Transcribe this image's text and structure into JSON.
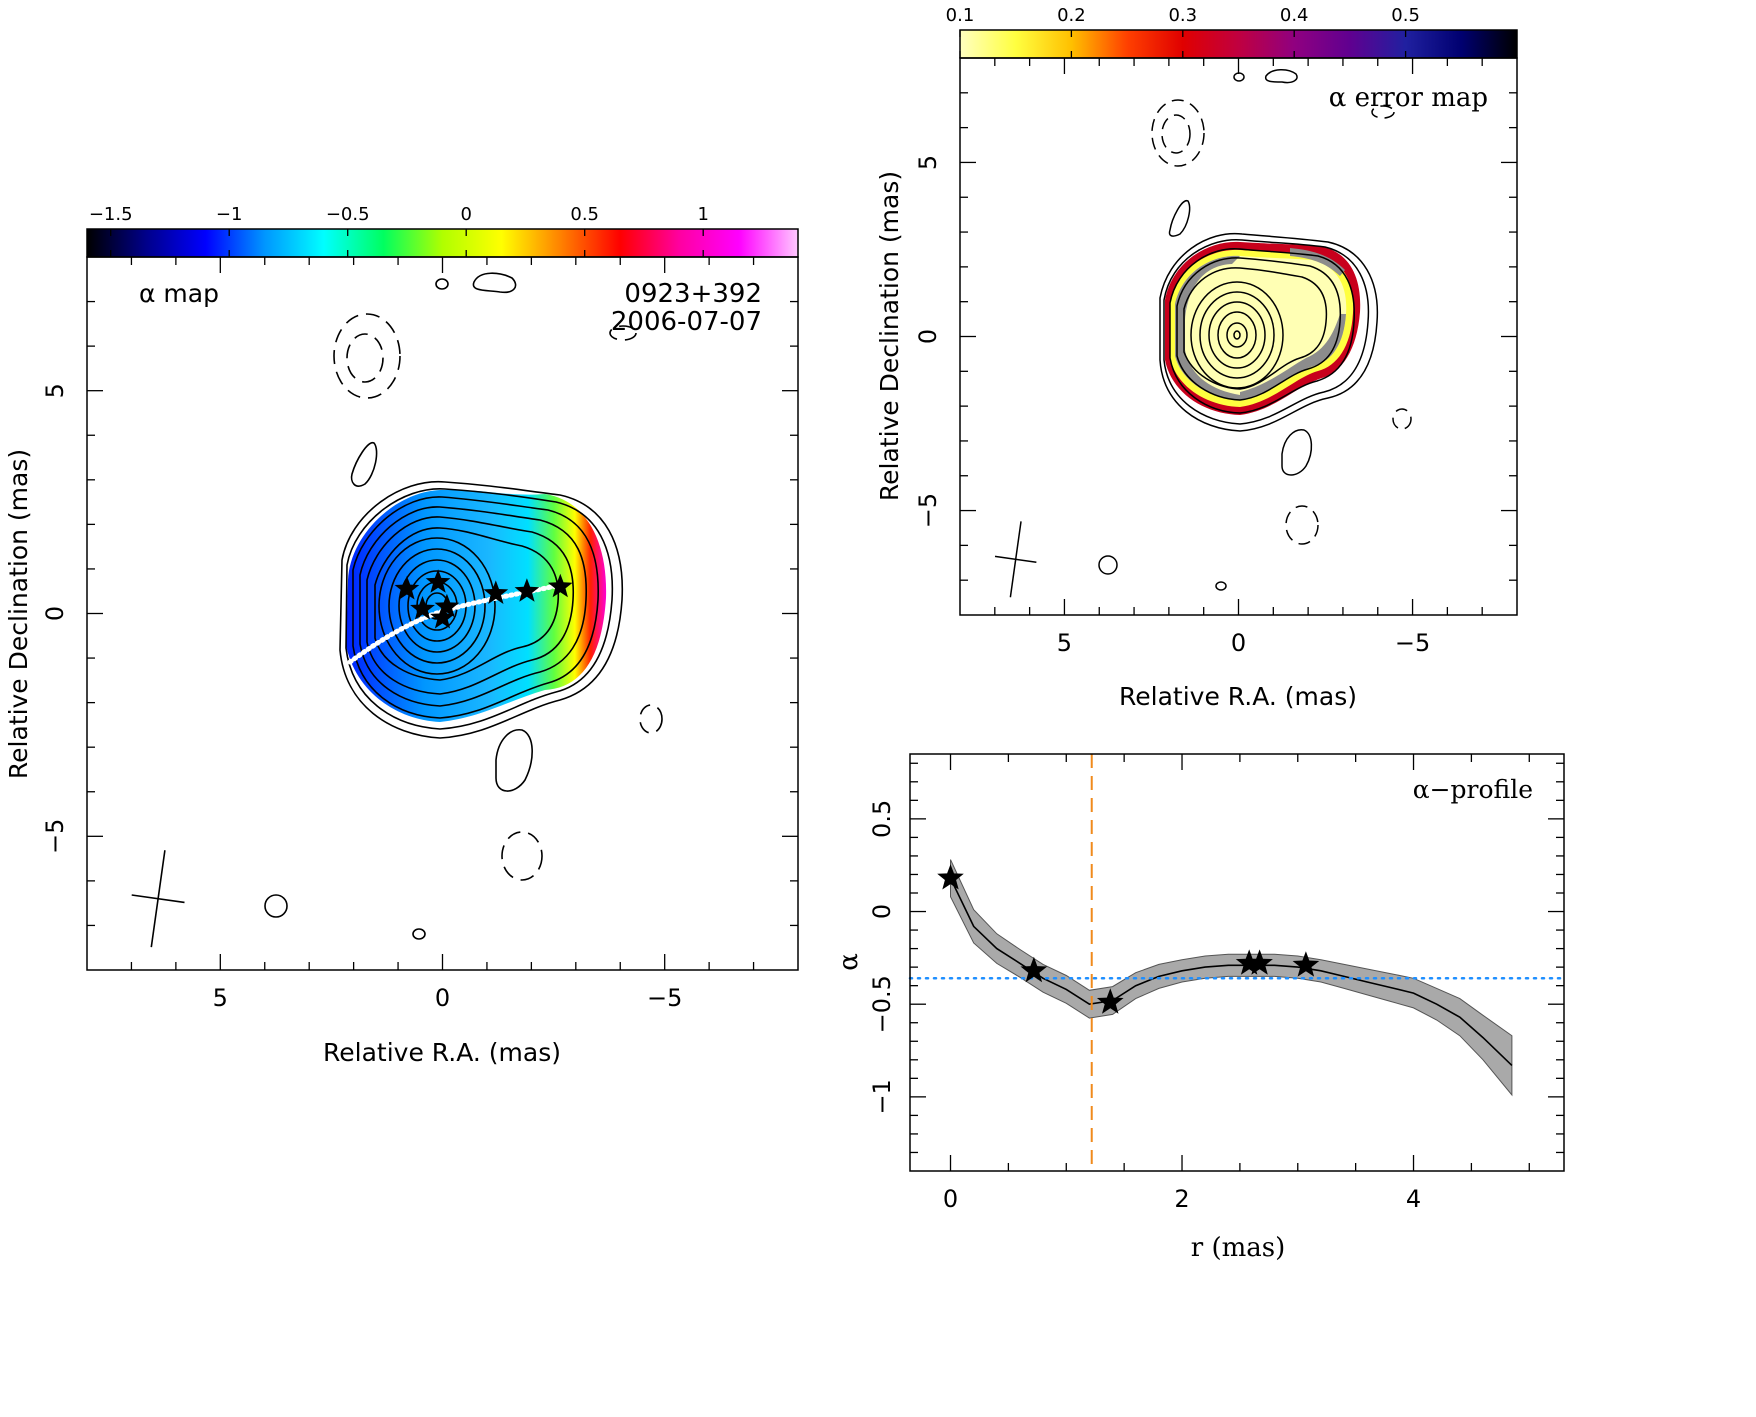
{
  "chart_data": [
    {
      "type": "heatmap",
      "panel": "alpha-map",
      "label": "α map",
      "source": "0923+392",
      "epoch": "2006-07-07",
      "xlabel": "Relative R.A. (mas)",
      "ylabel": "Relative Declination (mas)",
      "xlim": [
        8,
        -8
      ],
      "ylim": [
        -8,
        8
      ],
      "xticks": [
        5,
        0,
        -5
      ],
      "yticks": [
        5,
        0,
        -5
      ],
      "xtick_labels": [
        "5",
        "0",
        "−5"
      ],
      "ytick_labels": [
        "5",
        "0",
        "−5"
      ],
      "colorbar": {
        "range": [
          -1.6,
          1.4
        ],
        "ticks": [
          -1.5,
          -1,
          -0.5,
          0,
          0.5,
          1
        ],
        "tick_labels": [
          "−1.5",
          "−1",
          "−0.5",
          "0",
          "0.5",
          "1"
        ],
        "colors": [
          "#000000",
          "#00008a",
          "#0000ff",
          "#0096ff",
          "#00ffff",
          "#00ff60",
          "#b0ff00",
          "#ffff00",
          "#ff8000",
          "#ff0000",
          "#ff00a0",
          "#ff00ff",
          "#ffc8ff"
        ]
      },
      "ridge_stars": [
        {
          "x": 0.8,
          "y": 0.55
        },
        {
          "x": 0.1,
          "y": 0.7
        },
        {
          "x": 0.45,
          "y": 0.1
        },
        {
          "x": -0.1,
          "y": 0.15
        },
        {
          "x": 0.0,
          "y": -0.1
        },
        {
          "x": -1.2,
          "y": 0.45
        },
        {
          "x": -1.9,
          "y": 0.5
        },
        {
          "x": -2.65,
          "y": 0.6
        }
      ],
      "beam": {
        "x": 6.4,
        "y": -6.4,
        "major": 2.2,
        "minor": 1.2
      }
    },
    {
      "type": "heatmap",
      "panel": "alpha-error-map",
      "label": "α error map",
      "xlabel": "Relative R.A. (mas)",
      "ylabel": "Relative Declination (mas)",
      "xlim": [
        8,
        -8
      ],
      "ylim": [
        -8,
        8
      ],
      "xticks": [
        5,
        0,
        -5
      ],
      "yticks": [
        5,
        0,
        -5
      ],
      "xtick_labels": [
        "5",
        "0",
        "−5"
      ],
      "ytick_labels": [
        "5",
        "0",
        "−5"
      ],
      "colorbar": {
        "range": [
          0.1,
          0.6
        ],
        "ticks": [
          0.1,
          0.2,
          0.3,
          0.4,
          0.5
        ],
        "tick_labels": [
          "0.1",
          "0.2",
          "0.3",
          "0.4",
          "0.5"
        ],
        "colors": [
          "#ffffc0",
          "#ffff40",
          "#ffc000",
          "#ff4000",
          "#e00000",
          "#c00040",
          "#900080",
          "#600090",
          "#2020a0",
          "#000070",
          "#000000"
        ]
      },
      "beam": {
        "x": 6.4,
        "y": -6.4,
        "major": 2.2,
        "minor": 1.2
      }
    },
    {
      "type": "line",
      "panel": "alpha-profile",
      "label": "α−profile",
      "xlabel": "r (mas)",
      "ylabel": "α",
      "xlim": [
        -0.35,
        5.3
      ],
      "ylim": [
        -1.4,
        0.85
      ],
      "xticks": [
        0,
        2,
        4
      ],
      "yticks": [
        0.5,
        0,
        -0.5,
        -1
      ],
      "xtick_labels": [
        "0",
        "2",
        "4"
      ],
      "ytick_labels": [
        "0.5",
        "0",
        "−0.5",
        "−1"
      ],
      "x": [
        0.0,
        0.2,
        0.4,
        0.6,
        0.8,
        1.0,
        1.2,
        1.4,
        1.6,
        1.8,
        2.0,
        2.2,
        2.4,
        2.6,
        2.8,
        3.0,
        3.2,
        3.4,
        3.6,
        3.8,
        4.0,
        4.2,
        4.4,
        4.6,
        4.85
      ],
      "y": [
        0.18,
        -0.08,
        -0.2,
        -0.28,
        -0.36,
        -0.42,
        -0.5,
        -0.48,
        -0.4,
        -0.35,
        -0.32,
        -0.3,
        -0.29,
        -0.29,
        -0.29,
        -0.3,
        -0.32,
        -0.35,
        -0.38,
        -0.41,
        -0.44,
        -0.5,
        -0.57,
        -0.68,
        -0.83
      ],
      "band_halfwidth": [
        0.1,
        0.09,
        0.08,
        0.075,
        0.075,
        0.075,
        0.075,
        0.075,
        0.07,
        0.065,
        0.06,
        0.06,
        0.06,
        0.06,
        0.06,
        0.06,
        0.06,
        0.065,
        0.07,
        0.075,
        0.08,
        0.085,
        0.1,
        0.12,
        0.16
      ],
      "stars": [
        {
          "x": 0.0,
          "y": 0.18
        },
        {
          "x": 0.72,
          "y": -0.32
        },
        {
          "x": 1.38,
          "y": -0.49
        },
        {
          "x": 2.58,
          "y": -0.28
        },
        {
          "x": 2.67,
          "y": -0.28
        },
        {
          "x": 3.07,
          "y": -0.29
        }
      ],
      "vline": {
        "x": 1.22,
        "color": "#f08a1c",
        "style": "dashed"
      },
      "hline": {
        "y": -0.36,
        "color": "#1f8fff",
        "style": "dotted"
      },
      "band_color": "#a9a9a9"
    }
  ]
}
